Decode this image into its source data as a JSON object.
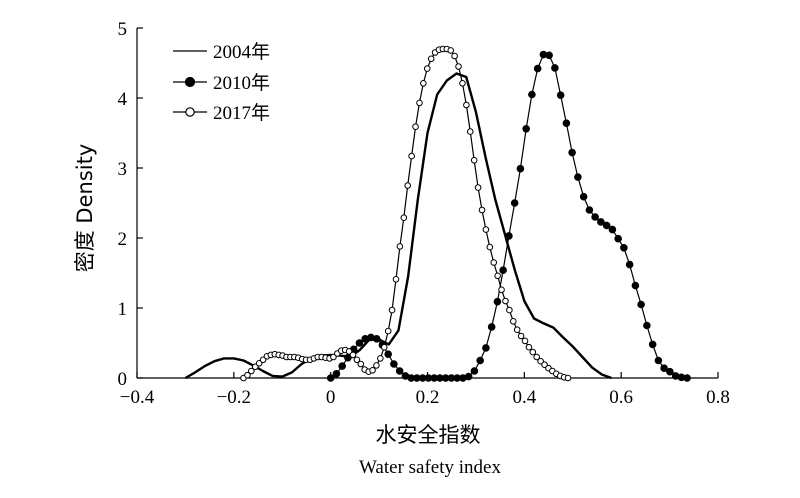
{
  "chart_data": {
    "type": "line",
    "title": "",
    "xlabel_cn": "水安全指数",
    "xlabel_en": "Water safety index",
    "ylabel": "密度 Density",
    "xlim": [
      -0.4,
      0.8
    ],
    "ylim": [
      0,
      5
    ],
    "xticks": [
      "−0.4",
      "−0.2",
      "0",
      "0.2",
      "0.4",
      "0.6",
      "0.8"
    ],
    "yticks": [
      "0",
      "1",
      "2",
      "3",
      "4",
      "5"
    ],
    "grid": false,
    "legend": "top-left",
    "series": [
      {
        "name": "2004年",
        "marker": "none",
        "x": [
          -0.3,
          -0.28,
          -0.26,
          -0.24,
          -0.22,
          -0.2,
          -0.18,
          -0.16,
          -0.14,
          -0.12,
          -0.1,
          -0.08,
          -0.06,
          -0.04,
          -0.02,
          0.0,
          0.02,
          0.04,
          0.06,
          0.08,
          0.1,
          0.12,
          0.14,
          0.16,
          0.18,
          0.2,
          0.22,
          0.24,
          0.26,
          0.28,
          0.3,
          0.32,
          0.34,
          0.36,
          0.38,
          0.4,
          0.42,
          0.44,
          0.46,
          0.48,
          0.5,
          0.52,
          0.54,
          0.56,
          0.58
        ],
        "y": [
          0.0,
          0.08,
          0.17,
          0.24,
          0.28,
          0.28,
          0.25,
          0.18,
          0.1,
          0.03,
          0.02,
          0.08,
          0.2,
          0.28,
          0.32,
          0.33,
          0.32,
          0.3,
          0.4,
          0.55,
          0.55,
          0.48,
          0.68,
          1.45,
          2.55,
          3.5,
          4.05,
          4.25,
          4.35,
          4.3,
          3.8,
          3.15,
          2.55,
          2.05,
          1.55,
          1.1,
          0.85,
          0.78,
          0.72,
          0.58,
          0.45,
          0.3,
          0.15,
          0.05,
          0.0
        ]
      },
      {
        "name": "2010年",
        "marker": "filled-circle",
        "x": [
          -0.0,
          0.0119,
          0.0238,
          0.0356,
          0.0475,
          0.0594,
          0.0713,
          0.0831,
          0.095,
          0.1069,
          0.1188,
          0.1306,
          0.1425,
          0.1544,
          0.1663,
          0.1781,
          0.19,
          0.2019,
          0.2138,
          0.2256,
          0.2375,
          0.2494,
          0.2613,
          0.2731,
          0.285,
          0.2969,
          0.3088,
          0.3206,
          0.3325,
          0.3444,
          0.3562,
          0.3681,
          0.38,
          0.3919,
          0.4038,
          0.4156,
          0.4275,
          0.4394,
          0.4512,
          0.4631,
          0.475,
          0.4869,
          0.4987,
          0.5106,
          0.5225,
          0.5344,
          0.5462,
          0.5581,
          0.57,
          0.5819,
          0.5938,
          0.6056,
          0.6175,
          0.6294,
          0.6412,
          0.6531,
          0.665,
          0.6769,
          0.6887,
          0.7006,
          0.7125,
          0.7244,
          0.7362
        ],
        "y": [
          0.0,
          0.06,
          0.17,
          0.29,
          0.41,
          0.5,
          0.56,
          0.58,
          0.56,
          0.47,
          0.34,
          0.2,
          0.1,
          0.03,
          0.0,
          0.0,
          0.0,
          0.0,
          0.0,
          0.0,
          0.0,
          0.0,
          0.0,
          0.0,
          0.02,
          0.1,
          0.25,
          0.43,
          0.73,
          1.09,
          1.54,
          2.03,
          2.5,
          2.99,
          3.56,
          4.05,
          4.42,
          4.62,
          4.61,
          4.43,
          4.04,
          3.64,
          3.22,
          2.87,
          2.59,
          2.4,
          2.3,
          2.23,
          2.18,
          2.12,
          1.99,
          1.86,
          1.62,
          1.32,
          1.05,
          0.75,
          0.48,
          0.25,
          0.14,
          0.09,
          0.03,
          0.01,
          0.0
        ]
      },
      {
        "name": "2017年",
        "marker": "open-circle",
        "x": [
          -0.18,
          -0.1719,
          -0.1639,
          -0.1558,
          -0.1477,
          -0.1396,
          -0.1316,
          -0.1235,
          -0.1154,
          -0.1073,
          -0.0993,
          -0.0912,
          -0.0831,
          -0.075,
          -0.067,
          -0.0589,
          -0.0508,
          -0.0427,
          -0.0347,
          -0.0266,
          -0.0185,
          -0.0104,
          -0.0024,
          0.0057,
          0.0138,
          0.0219,
          0.0299,
          0.038,
          0.0461,
          0.0542,
          0.0622,
          0.0703,
          0.0784,
          0.0865,
          0.0945,
          0.1026,
          0.1107,
          0.1188,
          0.1268,
          0.1349,
          0.143,
          0.1511,
          0.1591,
          0.1672,
          0.1753,
          0.1834,
          0.1914,
          0.1995,
          0.2076,
          0.2157,
          0.2237,
          0.2318,
          0.2399,
          0.248,
          0.256,
          0.2641,
          0.2722,
          0.2803,
          0.2883,
          0.2964,
          0.3045,
          0.3126,
          0.3206,
          0.3287,
          0.3368,
          0.3449,
          0.3529,
          0.361,
          0.3691,
          0.3772,
          0.3852,
          0.3933,
          0.4014,
          0.4095,
          0.4175,
          0.4256,
          0.4337,
          0.4418,
          0.4498,
          0.4579,
          0.466,
          0.4741,
          0.4821,
          0.4902
        ],
        "y": [
          0.0,
          0.04,
          0.1,
          0.16,
          0.21,
          0.26,
          0.31,
          0.33,
          0.34,
          0.33,
          0.32,
          0.3,
          0.3,
          0.3,
          0.29,
          0.27,
          0.26,
          0.26,
          0.28,
          0.3,
          0.3,
          0.29,
          0.28,
          0.3,
          0.35,
          0.39,
          0.4,
          0.38,
          0.33,
          0.26,
          0.2,
          0.12,
          0.09,
          0.11,
          0.18,
          0.28,
          0.44,
          0.67,
          0.97,
          1.41,
          1.88,
          2.29,
          2.75,
          3.17,
          3.59,
          3.93,
          4.21,
          4.42,
          4.56,
          4.65,
          4.69,
          4.7,
          4.7,
          4.68,
          4.6,
          4.45,
          4.21,
          3.9,
          3.52,
          3.11,
          2.72,
          2.4,
          2.12,
          1.87,
          1.65,
          1.46,
          1.26,
          1.1,
          0.97,
          0.81,
          0.69,
          0.6,
          0.53,
          0.44,
          0.37,
          0.3,
          0.24,
          0.19,
          0.14,
          0.1,
          0.06,
          0.03,
          0.01,
          0.0
        ]
      }
    ]
  }
}
